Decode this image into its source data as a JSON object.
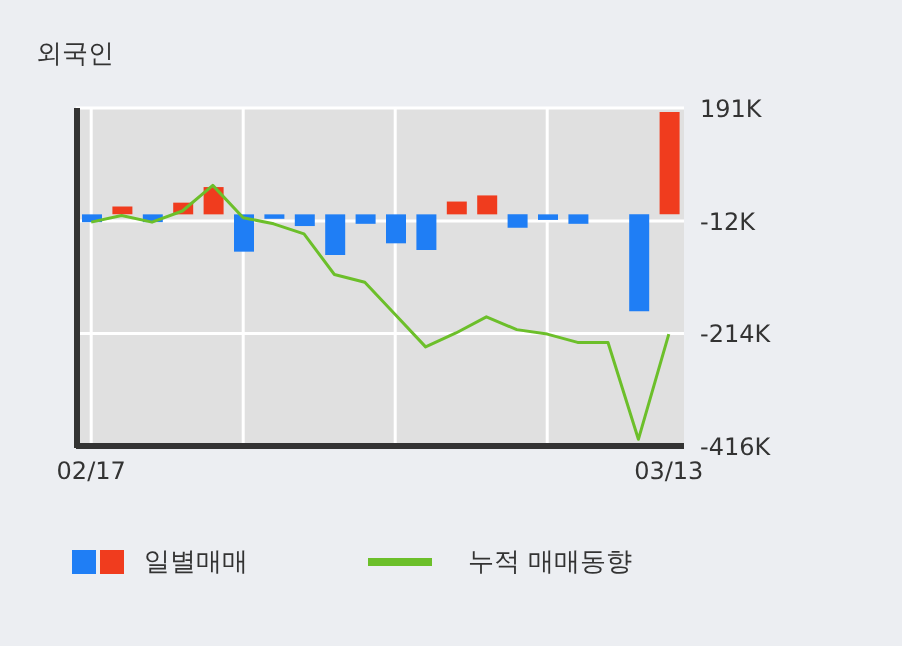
{
  "chart_data": {
    "type": "bar",
    "title": "외국인",
    "categories": [
      "02/17",
      null,
      null,
      null,
      null,
      null,
      null,
      null,
      null,
      null,
      null,
      null,
      null,
      null,
      null,
      null,
      null,
      null,
      null,
      "03/13"
    ],
    "series": [
      {
        "name": "일별매매",
        "colors": [
          "#1f7ef5",
          "#f03c1e",
          "#1f7ef5",
          "#f03c1e",
          "#f03c1e",
          "#1f7ef5",
          "#1f7ef5",
          "#1f7ef5",
          "#1f7ef5",
          "#1f7ef5",
          "#1f7ef5",
          "#1f7ef5",
          "#f03c1e",
          "#f03c1e",
          "#1f7ef5",
          "#1f7ef5",
          "#1f7ef5",
          "#1f7ef5",
          "#1f7ef5",
          "#f03c1e"
        ],
        "values": [
          -14000,
          14000,
          -14000,
          21000,
          49000,
          -67000,
          -8000,
          -21000,
          -73000,
          -17000,
          -52000,
          -64000,
          23000,
          34000,
          -24000,
          -10000,
          -17000,
          0,
          -174000,
          184000
        ]
      },
      {
        "name": "누적 매매동향",
        "type": "line",
        "color": "#6cbf2a",
        "values": [
          -14000,
          -2000,
          -14000,
          6000,
          52000,
          -6000,
          -17000,
          -35000,
          -108000,
          -122000,
          -180000,
          -238000,
          -213000,
          -184000,
          -207000,
          -215000,
          -230000,
          -230000,
          -404000,
          -215000
        ]
      }
    ],
    "ylim": [
      -416000,
      191000
    ],
    "yticks": [
      {
        "value": 191000,
        "label": "191K"
      },
      {
        "value": -12000,
        "label": "-12K"
      },
      {
        "value": -214000,
        "label": "-214K"
      },
      {
        "value": -416000,
        "label": "-416K"
      }
    ],
    "grid": true,
    "legend": "bottom",
    "marker": "none",
    "line_style": "solid"
  }
}
